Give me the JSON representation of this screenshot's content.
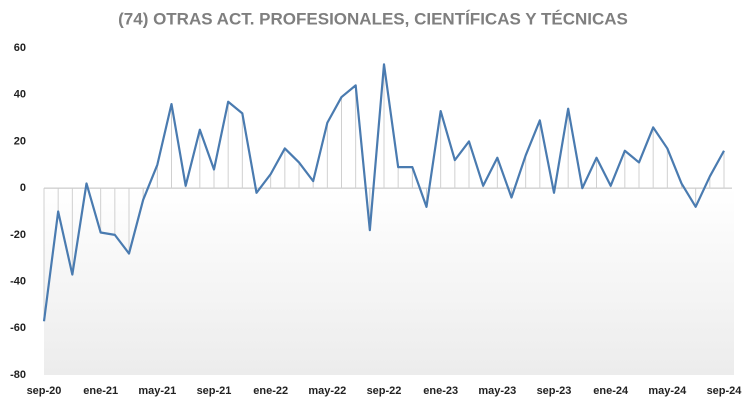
{
  "chart_data": {
    "type": "line",
    "title": "(74) OTRAS ACT. PROFESIONALES, CIENTÍFICAS Y TÉCNICAS",
    "categories": [
      "sep-20",
      null,
      null,
      null,
      "ene-21",
      null,
      null,
      null,
      "may-21",
      null,
      null,
      null,
      "sep-21",
      null,
      null,
      null,
      "ene-22",
      null,
      null,
      null,
      "may-22",
      null,
      null,
      null,
      "sep-22",
      null,
      null,
      null,
      "ene-23",
      null,
      null,
      null,
      "may-23",
      null,
      null,
      null,
      "sep-23",
      null,
      null,
      null,
      "ene-24",
      null,
      null,
      null,
      "may-24",
      null,
      null,
      null,
      "sep-24"
    ],
    "series": [
      {
        "color": "#4a7bb0",
        "values": [
          -57,
          -10,
          -37,
          2,
          -19,
          -20,
          -28,
          -5,
          10,
          36,
          1,
          25,
          8,
          37,
          32,
          -2,
          6,
          17,
          11,
          3,
          28,
          39,
          44,
          -18,
          53,
          9,
          9,
          -8,
          33,
          12,
          20,
          1,
          13,
          -4,
          14,
          29,
          -2,
          34,
          0,
          13,
          1,
          16,
          11,
          26,
          17,
          2,
          -8,
          5,
          16
        ]
      }
    ],
    "ylim": [
      -80,
      60
    ],
    "yticks": [
      -80,
      -60,
      -40,
      -20,
      0,
      20,
      40,
      60
    ]
  }
}
